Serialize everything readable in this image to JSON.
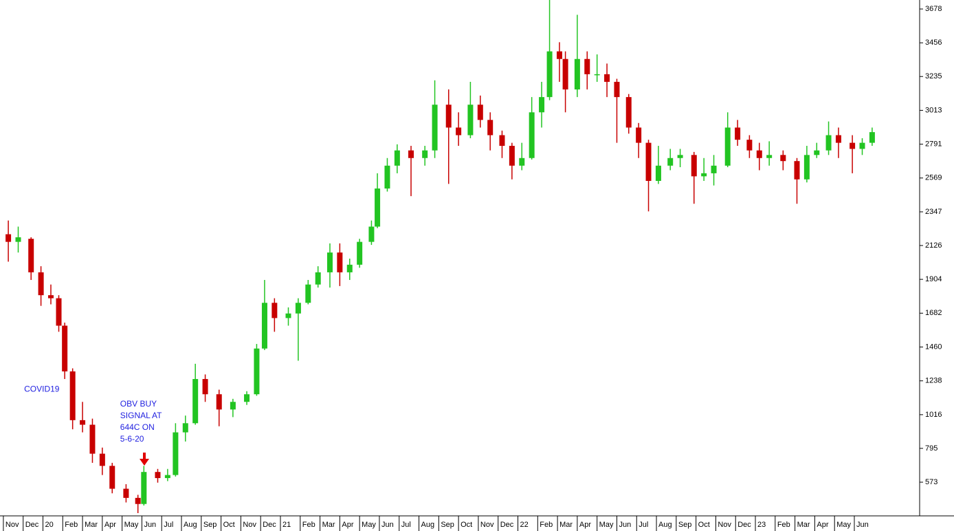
{
  "chart_data": {
    "type": "candlestick",
    "up_color": "#22c422",
    "down_color": "#c80000",
    "annotations": [
      {
        "lines": [
          "COVID19"
        ],
        "x": 1.05,
        "y": 1180
      },
      {
        "lines": [
          "OBV BUY",
          "SIGNAL AT",
          "644C ON",
          "5-6-20"
        ],
        "x": 5.9,
        "y": 1085,
        "color": "#1f1fe0"
      }
    ],
    "x": [
      0.25,
      0.75,
      1.4,
      1.9,
      2.4,
      2.8,
      3.1,
      3.5,
      4.0,
      4.5,
      5.0,
      5.5,
      6.2,
      6.8,
      7.1,
      7.8,
      8.3,
      8.7,
      9.2,
      9.7,
      10.2,
      10.9,
      11.6,
      12.3,
      12.8,
      13.2,
      13.7,
      14.4,
      14.9,
      15.4,
      15.9,
      16.5,
      17.0,
      17.5,
      18.0,
      18.6,
      18.9,
      19.4,
      19.9,
      20.6,
      21.3,
      21.8,
      22.5,
      23.0,
      23.6,
      24.1,
      24.6,
      25.2,
      25.7,
      26.2,
      26.7,
      27.2,
      27.6,
      28.1,
      28.4,
      29.0,
      29.5,
      30.0,
      30.5,
      31.0,
      31.6,
      32.1,
      32.6,
      33.1,
      33.7,
      34.2,
      34.9,
      35.4,
      35.9,
      36.6,
      37.1,
      37.7,
      38.2,
      38.7,
      39.4,
      40.1,
      40.6,
      41.1,
      41.7,
      42.2,
      42.9,
      43.4,
      43.9
    ],
    "open": [
      2200,
      2150,
      2170,
      1950,
      1800,
      1780,
      1600,
      1300,
      980,
      950,
      760,
      680,
      530,
      470,
      430,
      640,
      600,
      620,
      900,
      960,
      1250,
      1150,
      1050,
      1100,
      1150,
      1450,
      1750,
      1650,
      1680,
      1750,
      1870,
      1950,
      2080,
      1950,
      2000,
      2150,
      2250,
      2500,
      2650,
      2750,
      2700,
      2750,
      3050,
      2900,
      2850,
      3050,
      2950,
      2850,
      2780,
      2650,
      2700,
      3000,
      3100,
      3400,
      3350,
      3150,
      3350,
      3250,
      3250,
      3200,
      3100,
      2900,
      2800,
      2550,
      2650,
      2700,
      2720,
      2580,
      2600,
      2650,
      2900,
      2820,
      2750,
      2700,
      2720,
      2680,
      2560,
      2720,
      2750,
      2850,
      2800,
      2760,
      2800
    ],
    "high": [
      2290,
      2250,
      2180,
      1990,
      1870,
      1800,
      1620,
      1320,
      1100,
      990,
      800,
      700,
      560,
      490,
      680,
      660,
      660,
      960,
      1010,
      1350,
      1280,
      1180,
      1120,
      1170,
      1480,
      1900,
      1780,
      1720,
      1780,
      1900,
      1990,
      2140,
      2140,
      2040,
      2170,
      2290,
      2600,
      2700,
      2790,
      2780,
      2780,
      3210,
      3150,
      3000,
      3200,
      3110,
      3000,
      2880,
      2800,
      2800,
      3100,
      3200,
      3740,
      3460,
      3400,
      3640,
      3400,
      3380,
      3320,
      3220,
      3120,
      2930,
      2820,
      2780,
      2760,
      2760,
      2740,
      2700,
      2720,
      3000,
      2950,
      2850,
      2800,
      2810,
      2750,
      2700,
      2780,
      2800,
      2940,
      2900,
      2850,
      2830,
      2900
    ],
    "low": [
      2020,
      2080,
      1900,
      1730,
      1740,
      1560,
      1250,
      920,
      900,
      700,
      620,
      500,
      440,
      370,
      420,
      570,
      580,
      610,
      840,
      950,
      1100,
      940,
      1000,
      1080,
      1140,
      1440,
      1560,
      1600,
      1370,
      1740,
      1850,
      1850,
      1860,
      1900,
      1980,
      2130,
      2240,
      2480,
      2600,
      2450,
      2650,
      2700,
      2530,
      2780,
      2830,
      2900,
      2750,
      2700,
      2560,
      2620,
      2690,
      2900,
      3080,
      3200,
      3000,
      3100,
      3150,
      3200,
      3100,
      2800,
      2860,
      2700,
      2350,
      2530,
      2620,
      2640,
      2400,
      2550,
      2520,
      2640,
      2780,
      2700,
      2620,
      2650,
      2620,
      2400,
      2540,
      2700,
      2720,
      2700,
      2600,
      2720,
      2780
    ],
    "close": [
      2150,
      2180,
      1950,
      1800,
      1780,
      1600,
      1300,
      980,
      950,
      760,
      680,
      530,
      470,
      430,
      640,
      600,
      620,
      900,
      960,
      1250,
      1150,
      1050,
      1100,
      1150,
      1450,
      1750,
      1650,
      1680,
      1750,
      1870,
      1950,
      2080,
      1950,
      2000,
      2150,
      2250,
      2500,
      2650,
      2750,
      2700,
      2750,
      3050,
      2900,
      2850,
      3050,
      2950,
      2850,
      2780,
      2650,
      2700,
      3000,
      3100,
      3400,
      3350,
      3150,
      3350,
      3250,
      3250,
      3200,
      3100,
      2900,
      2800,
      2550,
      2650,
      2700,
      2720,
      2580,
      2600,
      2650,
      2900,
      2820,
      2750,
      2700,
      2720,
      2680,
      2560,
      2720,
      2750,
      2850,
      2800,
      2760,
      2800,
      2870
    ],
    "xlim": [
      -0.17,
      46.3
    ],
    "ylim": [
      352,
      3737
    ],
    "yticks": [
      573,
      795,
      1016,
      1238,
      1460,
      1682,
      1904,
      2126,
      2347,
      2569,
      2791,
      3013,
      3235,
      3456,
      3678
    ],
    "xticks": [
      {
        "value": 0,
        "label": "Nov"
      },
      {
        "value": 1,
        "label": "Dec"
      },
      {
        "value": 2,
        "label": "20"
      },
      {
        "value": 3,
        "label": "Feb"
      },
      {
        "value": 4,
        "label": "Mar"
      },
      {
        "value": 5,
        "label": "Apr"
      },
      {
        "value": 6,
        "label": "May"
      },
      {
        "value": 7,
        "label": "Jun"
      },
      {
        "value": 8,
        "label": "Jul"
      },
      {
        "value": 9,
        "label": "Aug"
      },
      {
        "value": 10,
        "label": "Sep"
      },
      {
        "value": 11,
        "label": "Oct"
      },
      {
        "value": 12,
        "label": "Nov"
      },
      {
        "value": 13,
        "label": "Dec"
      },
      {
        "value": 14,
        "label": "21"
      },
      {
        "value": 15,
        "label": "Feb"
      },
      {
        "value": 16,
        "label": "Mar"
      },
      {
        "value": 17,
        "label": "Apr"
      },
      {
        "value": 18,
        "label": "May"
      },
      {
        "value": 19,
        "label": "Jun"
      },
      {
        "value": 20,
        "label": "Jul"
      },
      {
        "value": 21,
        "label": "Aug"
      },
      {
        "value": 22,
        "label": "Sep"
      },
      {
        "value": 23,
        "label": "Oct"
      },
      {
        "value": 24,
        "label": "Nov"
      },
      {
        "value": 25,
        "label": "Dec"
      },
      {
        "value": 26,
        "label": "22"
      },
      {
        "value": 27,
        "label": "Feb"
      },
      {
        "value": 28,
        "label": "Mar"
      },
      {
        "value": 29,
        "label": "Apr"
      },
      {
        "value": 30,
        "label": "May"
      },
      {
        "value": 31,
        "label": "Jun"
      },
      {
        "value": 32,
        "label": "Jul"
      },
      {
        "value": 33,
        "label": "Aug"
      },
      {
        "value": 34,
        "label": "Sep"
      },
      {
        "value": 35,
        "label": "Oct"
      },
      {
        "value": 36,
        "label": "Nov"
      },
      {
        "value": 37,
        "label": "Dec"
      },
      {
        "value": 38,
        "label": "23"
      },
      {
        "value": 39,
        "label": "Feb"
      },
      {
        "value": 40,
        "label": "Mar"
      },
      {
        "value": 41,
        "label": "Apr"
      },
      {
        "value": 42,
        "label": "May"
      },
      {
        "value": 43,
        "label": "Jun"
      }
    ]
  }
}
